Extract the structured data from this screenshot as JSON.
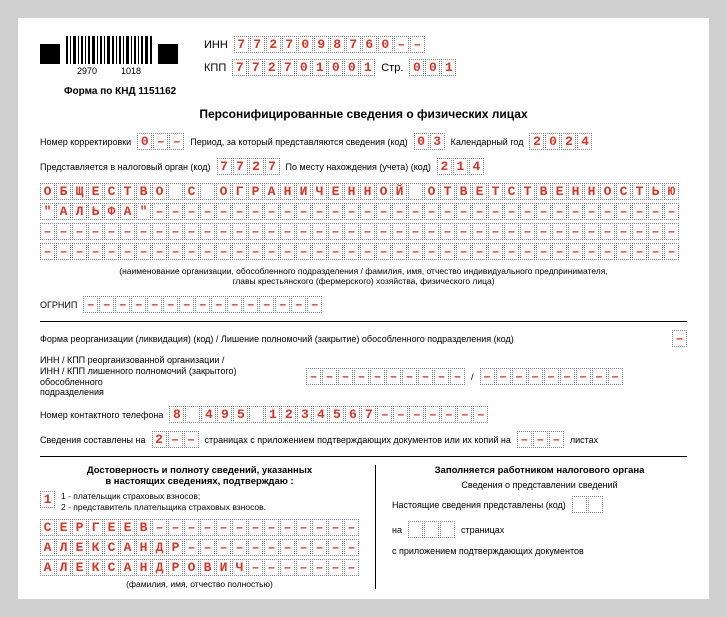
{
  "colors": {
    "fill": "#e03020",
    "dash": "–",
    "cell_border": "#888888",
    "page_bg": "#ffffff",
    "outer_bg": "#d0d0d0"
  },
  "barcode": {
    "num1": "2970",
    "num2": "1018"
  },
  "header": {
    "inn_label": "ИНН",
    "inn": "7727098760––",
    "kpp_label": "КПП",
    "kpp": "772701001",
    "page_label": "Стр.",
    "page": "001"
  },
  "form_code": "Форма по КНД 1151162",
  "title": "Персонифицированные сведения о физических лицах",
  "row1": {
    "corr_label": "Номер корректировки",
    "corr": "0––",
    "period_label": "Период, за который представляются сведения (код)",
    "period": "03",
    "year_label": "Календарный год",
    "year": "2024"
  },
  "row2": {
    "tax_label": "Представляется в налоговый орган (код)",
    "tax": "7727",
    "loc_label": "По месту нахождения (учета) (код)",
    "loc": "214"
  },
  "org_lines": [
    "ОБЩЕСТВО С ОГРАНИЧЕННОЙ ОТВЕТСТВЕННОСТЬЮ",
    "\"АЛЬФА\"––––––––––––––––––––––––––––––––––",
    "––––––––––––––––––––––––––––––––––––––––",
    "––––––––––––––––––––––––––––––––––––––––"
  ],
  "org_caption_1": "(наименование организации, обособленного подразделения / фамилия, имя, отчество индивидуального предпринимателя,",
  "org_caption_2": "главы крестьянского (фермерского) хозяйства, физического лица)",
  "ogrnip_label": "ОГРНИП",
  "ogrnip": "–––––––––––––––",
  "reorg_label": "Форма реорганизации (ликвидация) (код) / Лишение полномочий (закрытие) обособленного подразделения (код)",
  "reorg": "–",
  "inn_kpp_reorg_label1": "ИНН / КПП реорганизованной организации /",
  "inn_kpp_reorg_label2": "ИНН / КПП лишенного полномочий (закрытого) обособленного",
  "inn_kpp_reorg_label3": "подразделения",
  "reorg_inn": "––––––––––",
  "reorg_kpp": "–––––––––",
  "phone_label": "Номер контактного телефона",
  "phone": "8 495 1234567–––––––",
  "pages_label1": "Сведения составлены на",
  "pages": "2––",
  "pages_label2": "страницах с приложением подтверждающих документов или их копий на",
  "attach": "–––",
  "pages_label3": "листах",
  "left": {
    "title1": "Достоверность и полноту сведений, указанных",
    "title2": "в настоящих сведениях, подтверждаю :",
    "legend_code": "1",
    "legend1": "1 - плательщик страховых взносов;",
    "legend2": "2 - представитель плательщика страховых взносов.",
    "name1": "СЕРГЕЕВ–––––––––––––",
    "name2": "АЛЕКСАНДР–––––––––––",
    "name3": "АЛЕКСАНДРОВИЧ–––––––",
    "fio_caption": "(фамилия, имя, отчество полностью)"
  },
  "right": {
    "title": "Заполняется работником налогового органа",
    "sub": "Сведения о представлении сведений",
    "line1a": "Настоящие сведения представлены  (код)",
    "code1": "  ",
    "line2a": "на",
    "code2": "   ",
    "line2b": "страницах",
    "line3": "с приложением подтверждающих документов"
  }
}
